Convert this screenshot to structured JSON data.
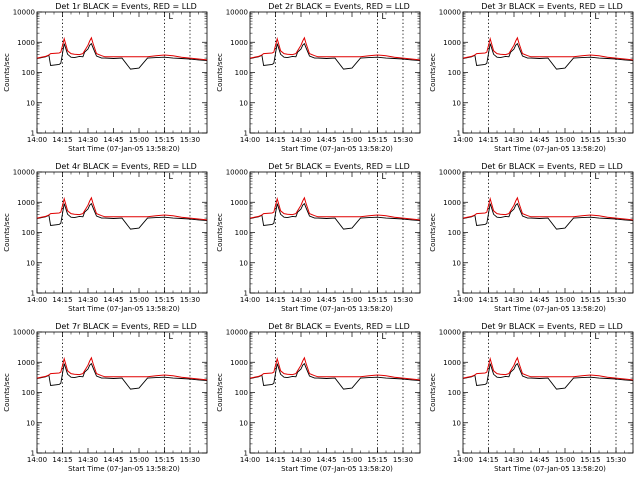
{
  "chart_data": [
    {
      "type": "line",
      "title": "Det 1r BLACK = Events, RED = LLD",
      "xlabel": "Start Time (07-Jan-05 13:58:20)",
      "ylabel": "Counts/sec",
      "xlim": [
        "14:00",
        "15:40"
      ],
      "x_ticks": [
        "14:00",
        "14:15",
        "14:30",
        "14:45",
        "15:00",
        "15:15",
        "15:30"
      ],
      "y_scale": "log",
      "ylim": [
        1,
        10000
      ],
      "y_ticks": [
        "1",
        "10",
        "100",
        "1000",
        "10000"
      ],
      "vlines": [
        "14:15",
        "15:15",
        "15:30"
      ],
      "annotation": "L",
      "grid": false,
      "series": [
        {
          "name": "Events",
          "color": "#000000"
        },
        {
          "name": "LLD",
          "color": "#e00000"
        }
      ]
    },
    {
      "type": "line",
      "title": "Det 2r BLACK = Events, RED = LLD",
      "xlabel": "Start Time (07-Jan-05 13:58:20)",
      "ylabel": "Counts/sec",
      "xlim": [
        "14:00",
        "15:40"
      ],
      "x_ticks": [
        "14:00",
        "14:15",
        "14:30",
        "14:45",
        "15:00",
        "15:15",
        "15:30"
      ],
      "y_scale": "log",
      "ylim": [
        1,
        10000
      ],
      "y_ticks": [
        "1",
        "10",
        "100",
        "1000",
        "10000"
      ],
      "vlines": [
        "14:15",
        "15:15",
        "15:30"
      ],
      "annotation": "L",
      "grid": false,
      "series": [
        {
          "name": "Events",
          "color": "#000000"
        },
        {
          "name": "LLD",
          "color": "#e00000"
        }
      ]
    },
    {
      "type": "line",
      "title": "Det 3r BLACK = Events, RED = LLD",
      "xlabel": "Start Time (07-Jan-05 13:58:20)",
      "ylabel": "Counts/sec",
      "xlim": [
        "14:00",
        "15:40"
      ],
      "x_ticks": [
        "14:00",
        "14:15",
        "14:30",
        "14:45",
        "15:00",
        "15:15",
        "15:30"
      ],
      "y_scale": "log",
      "ylim": [
        1,
        10000
      ],
      "y_ticks": [
        "1",
        "10",
        "100",
        "1000",
        "10000"
      ],
      "vlines": [
        "14:15",
        "15:15",
        "15:30"
      ],
      "annotation": "L",
      "grid": false,
      "series": [
        {
          "name": "Events",
          "color": "#000000"
        },
        {
          "name": "LLD",
          "color": "#e00000"
        }
      ]
    },
    {
      "type": "line",
      "title": "Det 4r BLACK = Events, RED = LLD",
      "xlabel": "Start Time (07-Jan-05 13:58:20)",
      "ylabel": "Counts/sec",
      "xlim": [
        "14:00",
        "15:40"
      ],
      "x_ticks": [
        "14:00",
        "14:15",
        "14:30",
        "14:45",
        "15:00",
        "15:15",
        "15:30"
      ],
      "y_scale": "log",
      "ylim": [
        1,
        10000
      ],
      "y_ticks": [
        "1",
        "10",
        "100",
        "1000",
        "10000"
      ],
      "vlines": [
        "14:15",
        "15:15",
        "15:30"
      ],
      "annotation": "L",
      "grid": false,
      "series": [
        {
          "name": "Events",
          "color": "#000000"
        },
        {
          "name": "LLD",
          "color": "#e00000"
        }
      ]
    },
    {
      "type": "line",
      "title": "Det 5r BLACK = Events, RED = LLD",
      "xlabel": "Start Time (07-Jan-05 13:58:20)",
      "ylabel": "Counts/sec",
      "xlim": [
        "14:00",
        "15:40"
      ],
      "x_ticks": [
        "14:00",
        "14:15",
        "14:30",
        "14:45",
        "15:00",
        "15:15",
        "15:30"
      ],
      "y_scale": "log",
      "ylim": [
        1,
        10000
      ],
      "y_ticks": [
        "1",
        "10",
        "100",
        "1000",
        "10000"
      ],
      "vlines": [
        "14:15",
        "15:15",
        "15:30"
      ],
      "annotation": "L",
      "grid": false,
      "series": [
        {
          "name": "Events",
          "color": "#000000"
        },
        {
          "name": "LLD",
          "color": "#e00000"
        }
      ]
    },
    {
      "type": "line",
      "title": "Det 6r BLACK = Events, RED = LLD",
      "xlabel": "Start Time (07-Jan-05 13:58:20)",
      "ylabel": "Counts/sec",
      "xlim": [
        "14:00",
        "15:40"
      ],
      "x_ticks": [
        "14:00",
        "14:15",
        "14:30",
        "14:45",
        "15:00",
        "15:15",
        "15:30"
      ],
      "y_scale": "log",
      "ylim": [
        1,
        10000
      ],
      "y_ticks": [
        "1",
        "10",
        "100",
        "1000",
        "10000"
      ],
      "vlines": [
        "14:15",
        "15:15",
        "15:30"
      ],
      "annotation": "L",
      "grid": false,
      "series": [
        {
          "name": "Events",
          "color": "#000000"
        },
        {
          "name": "LLD",
          "color": "#e00000"
        }
      ]
    },
    {
      "type": "line",
      "title": "Det 7r BLACK = Events, RED = LLD",
      "xlabel": "Start Time (07-Jan-05 13:58:20)",
      "ylabel": "Counts/sec",
      "xlim": [
        "14:00",
        "15:40"
      ],
      "x_ticks": [
        "14:00",
        "14:15",
        "14:30",
        "14:45",
        "15:00",
        "15:15",
        "15:30"
      ],
      "y_scale": "log",
      "ylim": [
        1,
        10000
      ],
      "y_ticks": [
        "1",
        "10",
        "100",
        "1000",
        "10000"
      ],
      "vlines": [
        "14:15",
        "15:15",
        "15:30"
      ],
      "annotation": "L",
      "grid": false,
      "series": [
        {
          "name": "Events",
          "color": "#000000"
        },
        {
          "name": "LLD",
          "color": "#e00000"
        }
      ]
    },
    {
      "type": "line",
      "title": "Det 8r BLACK = Events, RED = LLD",
      "xlabel": "Start Time (07-Jan-05 13:58:20)",
      "ylabel": "Counts/sec",
      "xlim": [
        "14:00",
        "15:40"
      ],
      "x_ticks": [
        "14:00",
        "14:15",
        "14:30",
        "14:45",
        "15:00",
        "15:15",
        "15:30"
      ],
      "y_scale": "log",
      "ylim": [
        1,
        10000
      ],
      "y_ticks": [
        "1",
        "10",
        "100",
        "1000",
        "10000"
      ],
      "vlines": [
        "14:15",
        "15:15",
        "15:30"
      ],
      "annotation": "L",
      "grid": false,
      "series": [
        {
          "name": "Events",
          "color": "#000000"
        },
        {
          "name": "LLD",
          "color": "#e00000"
        }
      ]
    },
    {
      "type": "line",
      "title": "Det 9r BLACK = Events, RED = LLD",
      "xlabel": "Start Time (07-Jan-05 13:58:20)",
      "ylabel": "Counts/sec",
      "xlim": [
        "14:00",
        "15:40"
      ],
      "x_ticks": [
        "14:00",
        "14:15",
        "14:30",
        "14:45",
        "15:00",
        "15:15",
        "15:30"
      ],
      "y_scale": "log",
      "ylim": [
        1,
        10000
      ],
      "y_ticks": [
        "1",
        "10",
        "100",
        "1000",
        "10000"
      ],
      "vlines": [
        "14:15",
        "15:15",
        "15:30"
      ],
      "annotation": "L",
      "grid": false,
      "series": [
        {
          "name": "Events",
          "color": "#000000"
        },
        {
          "name": "LLD",
          "color": "#e00000"
        }
      ]
    }
  ],
  "shared_series": {
    "x": [
      "14:00",
      "14:05",
      "14:07",
      "14:08",
      "14:13",
      "14:14",
      "14:16",
      "14:18",
      "14:20",
      "14:22",
      "14:25",
      "14:27",
      "14:28",
      "14:30",
      "14:31",
      "14:32",
      "14:33",
      "14:35",
      "14:38",
      "14:40",
      "14:45",
      "14:50",
      "14:55",
      "15:00",
      "15:05",
      "15:10",
      "15:15",
      "15:20",
      "15:25",
      "15:30",
      "15:35",
      "15:40"
    ],
    "events": [
      290,
      330,
      370,
      170,
      185,
      200,
      900,
      400,
      320,
      310,
      340,
      330,
      470,
      600,
      800,
      900,
      650,
      350,
      300,
      300,
      290,
      300,
      130,
      140,
      300,
      310,
      320,
      300,
      290,
      280,
      260,
      250
    ],
    "lld": [
      300,
      340,
      380,
      420,
      440,
      470,
      1300,
      520,
      420,
      400,
      390,
      420,
      520,
      800,
      1100,
      1400,
      900,
      420,
      360,
      330,
      330,
      330,
      330,
      330,
      330,
      360,
      380,
      360,
      320,
      300,
      280,
      260
    ]
  }
}
